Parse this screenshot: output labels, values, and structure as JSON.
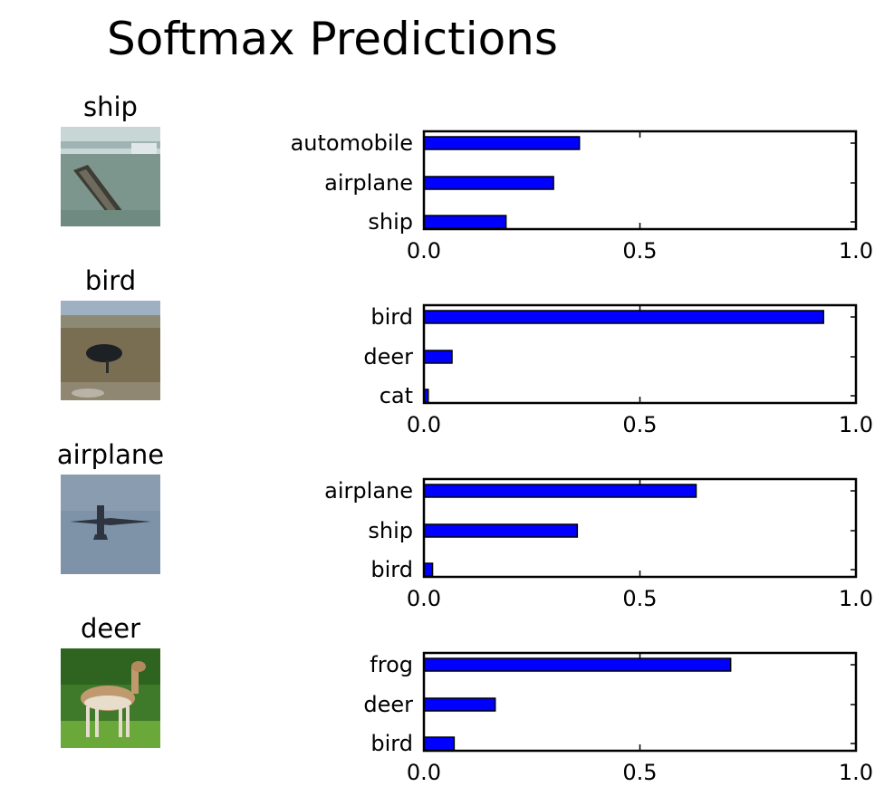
{
  "figure": {
    "title": "Softmax Predictions"
  },
  "colors": {
    "bar": "#0000ff",
    "bar_edge": "#000000",
    "axes": "#000000"
  },
  "chart_data": [
    {
      "type": "bar",
      "orientation": "horizontal",
      "image_label": "ship",
      "image_icon": "ship-photo",
      "categories": [
        "ship",
        "airplane",
        "automobile"
      ],
      "values": [
        0.19,
        0.3,
        0.36
      ],
      "xlim": [
        0,
        1
      ],
      "xticks": [
        "0.0",
        "0.5",
        "1.0"
      ],
      "grid": false
    },
    {
      "type": "bar",
      "orientation": "horizontal",
      "image_label": "bird",
      "image_icon": "bird-photo",
      "categories": [
        "cat",
        "deer",
        "bird"
      ],
      "values": [
        0.01,
        0.065,
        0.925
      ],
      "xlim": [
        0,
        1
      ],
      "xticks": [
        "0.0",
        "0.5",
        "1.0"
      ],
      "grid": false
    },
    {
      "type": "bar",
      "orientation": "horizontal",
      "image_label": "airplane",
      "image_icon": "airplane-photo",
      "categories": [
        "bird",
        "ship",
        "airplane"
      ],
      "values": [
        0.02,
        0.355,
        0.63
      ],
      "xlim": [
        0,
        1
      ],
      "xticks": [
        "0.0",
        "0.5",
        "1.0"
      ],
      "grid": false
    },
    {
      "type": "bar",
      "orientation": "horizontal",
      "image_label": "deer",
      "image_icon": "deer-photo",
      "categories": [
        "bird",
        "deer",
        "frog"
      ],
      "values": [
        0.07,
        0.165,
        0.71
      ],
      "xlim": [
        0,
        1
      ],
      "xticks": [
        "0.0",
        "0.5",
        "1.0"
      ],
      "grid": false
    }
  ]
}
